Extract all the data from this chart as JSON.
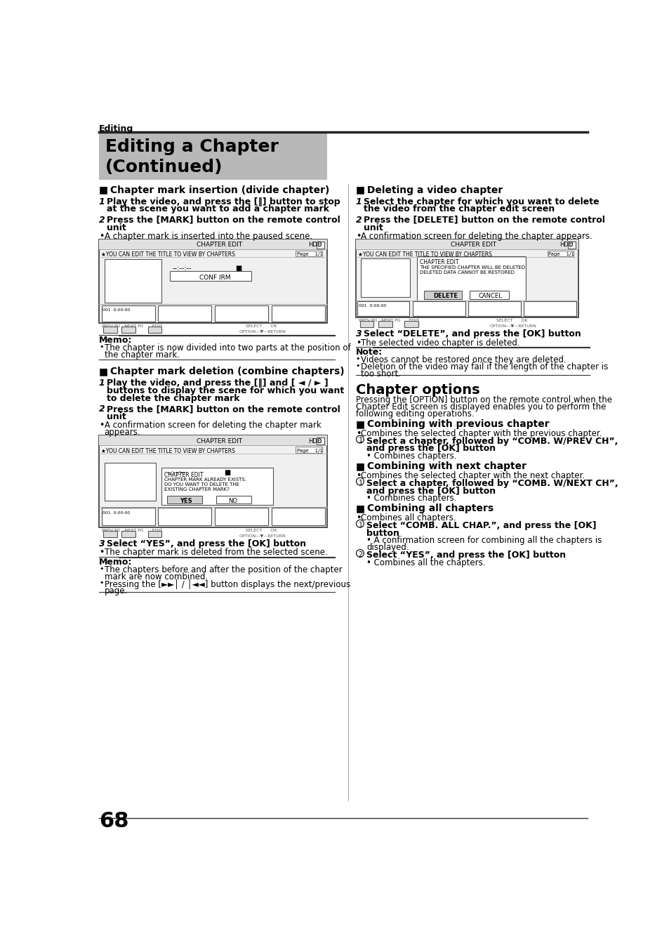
{
  "page_num": "68",
  "bg_color": "#ffffff",
  "header_text": "Editing",
  "title_text": "Editing a Chapter\n(Continued)",
  "title_bg": "#c0c0c0"
}
